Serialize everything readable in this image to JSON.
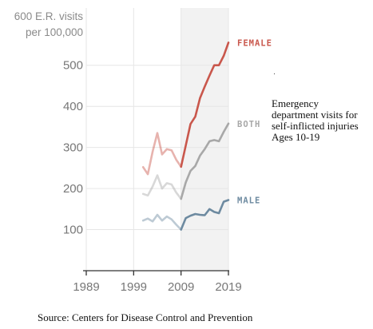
{
  "chart_data": {
    "type": "line",
    "title": "",
    "unit_label": [
      "600 E.R. visits",
      "per 100,000"
    ],
    "x_ticks": [
      "1989",
      "1999",
      "2009",
      "2019"
    ],
    "y_ticks": [
      "100",
      "200",
      "300",
      "400",
      "500"
    ],
    "xlim": [
      1989,
      2019
    ],
    "ylim": [
      0,
      620
    ],
    "grid": true,
    "shaded_region": [
      2009,
      2019
    ],
    "series": [
      {
        "name": "FEMALE",
        "color": "#c9574c",
        "x": [
          2001,
          2002,
          2003,
          2004,
          2005,
          2006,
          2007,
          2008,
          2009,
          2010,
          2011,
          2012,
          2013,
          2014,
          2015,
          2016,
          2017,
          2018,
          2019
        ],
        "y": [
          252,
          235,
          290,
          335,
          283,
          296,
          293,
          270,
          253,
          305,
          357,
          375,
          420,
          448,
          475,
          500,
          500,
          523,
          555
        ]
      },
      {
        "name": "BOTH",
        "color": "#a8a8a8",
        "x": [
          2001,
          2002,
          2003,
          2004,
          2005,
          2006,
          2007,
          2008,
          2009,
          2010,
          2011,
          2012,
          2013,
          2014,
          2015,
          2016,
          2017,
          2018,
          2019
        ],
        "y": [
          187,
          183,
          205,
          232,
          200,
          213,
          210,
          190,
          175,
          215,
          243,
          255,
          280,
          296,
          315,
          318,
          315,
          338,
          358
        ]
      },
      {
        "name": "MALE",
        "color": "#6d8aa0",
        "x": [
          2001,
          2002,
          2003,
          2004,
          2005,
          2006,
          2007,
          2008,
          2009,
          2010,
          2011,
          2012,
          2013,
          2014,
          2015,
          2016,
          2017,
          2018,
          2019
        ],
        "y": [
          122,
          127,
          120,
          136,
          122,
          132,
          125,
          112,
          100,
          128,
          134,
          138,
          136,
          135,
          150,
          143,
          140,
          168,
          172
        ]
      }
    ]
  },
  "caption": {
    "lines": [
      "Emergency",
      "department visits for",
      "self-inflicted injuries",
      "Ages 10-19"
    ]
  },
  "source": "Source: Centers for Disease Control and Prevention"
}
